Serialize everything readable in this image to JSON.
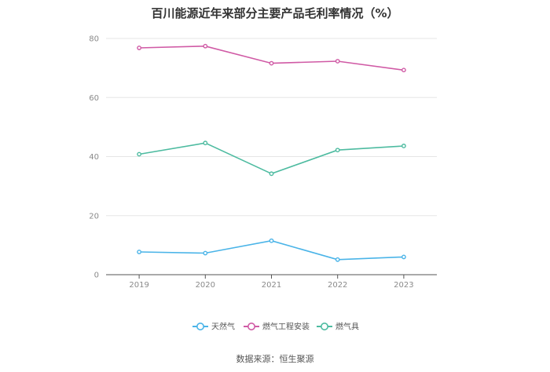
{
  "title": "百川能源近年来部分主要产品毛利率情况（%）",
  "source": "数据来源：恒生聚源",
  "colors": {
    "天然气": "#4ab4e8",
    "燃气工程安装": "#d05aa5",
    "燃气具": "#4dbba0"
  },
  "chart_data": {
    "type": "line",
    "title": "百川能源近年来部分主要产品毛利率情况（%）",
    "x": [
      "2019",
      "2020",
      "2021",
      "2022",
      "2023"
    ],
    "ylim": [
      0,
      80
    ],
    "yticks": [
      0,
      20,
      40,
      60,
      80
    ],
    "grid": true,
    "legend_position": "bottom",
    "series": [
      {
        "name": "天然气",
        "values": [
          7.7,
          7.3,
          11.5,
          5.1,
          6.0
        ]
      },
      {
        "name": "燃气工程安装",
        "values": [
          76.8,
          77.4,
          71.6,
          72.3,
          69.3
        ]
      },
      {
        "name": "燃气具",
        "values": [
          40.8,
          44.6,
          34.2,
          42.2,
          43.6
        ]
      }
    ]
  }
}
